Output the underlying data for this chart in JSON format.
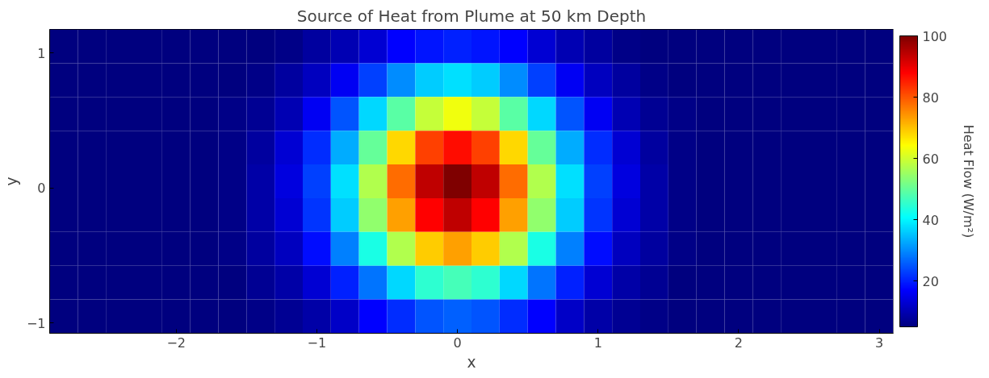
{
  "chart_data": {
    "type": "heatmap",
    "title": "Source of Heat from Plume at 50 km Depth",
    "xlabel": "x",
    "ylabel": "y",
    "clabel": "Heat Flow (W/m²)",
    "x": [
      -2.8,
      -2.6,
      -2.4,
      -2.2,
      -2.0,
      -1.8,
      -1.6,
      -1.4,
      -1.2,
      -1.0,
      -0.8,
      -0.6,
      -0.4,
      -0.2,
      0,
      0.2,
      0.4,
      0.6,
      0.8,
      1.0,
      1.2,
      1.4,
      1.6,
      1.8,
      2.0,
      2.2,
      2.4,
      2.6,
      2.8,
      3.0
    ],
    "y": [
      1.05,
      0.8,
      0.55,
      0.3,
      0.05,
      -0.2,
      -0.45,
      -0.7,
      -0.95
    ],
    "cells": [
      [
        5,
        5,
        5,
        5,
        5,
        5,
        5,
        5,
        6,
        8,
        10,
        13,
        17,
        19,
        20,
        19,
        17,
        13,
        10,
        8,
        6,
        5,
        5,
        5,
        5,
        5,
        5,
        5,
        5,
        5
      ],
      [
        5,
        5,
        5,
        5,
        5,
        5,
        5,
        6,
        8,
        11,
        16,
        23,
        30,
        36,
        38,
        36,
        30,
        23,
        16,
        11,
        8,
        6,
        5,
        5,
        5,
        5,
        5,
        5,
        5,
        5
      ],
      [
        5,
        5,
        5,
        5,
        5,
        5,
        6,
        7,
        10,
        16,
        25,
        37,
        49,
        59,
        63,
        59,
        49,
        37,
        25,
        16,
        10,
        7,
        6,
        5,
        5,
        5,
        5,
        5,
        5,
        5
      ],
      [
        5,
        5,
        5,
        5,
        5,
        5,
        6,
        8,
        13,
        21,
        33,
        50,
        68,
        82,
        87,
        82,
        68,
        50,
        33,
        21,
        13,
        8,
        6,
        5,
        5,
        5,
        5,
        5,
        5,
        5
      ],
      [
        5,
        5,
        5,
        5,
        5,
        5,
        6,
        9,
        14,
        23,
        38,
        57,
        78,
        94,
        100,
        94,
        78,
        57,
        38,
        23,
        14,
        9,
        6,
        5,
        5,
        5,
        5,
        5,
        5,
        5
      ],
      [
        5,
        5,
        5,
        5,
        5,
        5,
        6,
        9,
        13,
        22,
        36,
        54,
        73,
        88,
        94,
        88,
        73,
        54,
        36,
        22,
        13,
        9,
        6,
        5,
        5,
        5,
        5,
        5,
        5,
        5
      ],
      [
        5,
        5,
        5,
        5,
        5,
        5,
        6,
        8,
        11,
        18,
        29,
        43,
        57,
        69,
        73,
        69,
        57,
        43,
        29,
        18,
        11,
        8,
        6,
        5,
        5,
        5,
        5,
        5,
        5,
        5
      ],
      [
        5,
        5,
        5,
        5,
        5,
        5,
        5,
        7,
        9,
        13,
        20,
        28,
        37,
        45,
        47,
        45,
        37,
        28,
        20,
        13,
        9,
        7,
        5,
        5,
        5,
        5,
        5,
        5,
        5,
        5
      ],
      [
        5,
        5,
        5,
        5,
        5,
        5,
        5,
        6,
        7,
        9,
        12,
        17,
        21,
        25,
        26,
        25,
        21,
        17,
        12,
        9,
        7,
        6,
        5,
        5,
        5,
        5,
        5,
        5,
        5,
        5
      ]
    ],
    "xlim": [
      -2.9,
      3.1
    ],
    "ylim": [
      -1.075,
      1.175
    ],
    "xticks": [
      -2,
      -1,
      0,
      1,
      2,
      3
    ],
    "yticks": [
      -1,
      0,
      1
    ],
    "clim": [
      5,
      100
    ],
    "cticks": [
      20,
      40,
      60,
      80,
      100
    ],
    "grid": false
  }
}
